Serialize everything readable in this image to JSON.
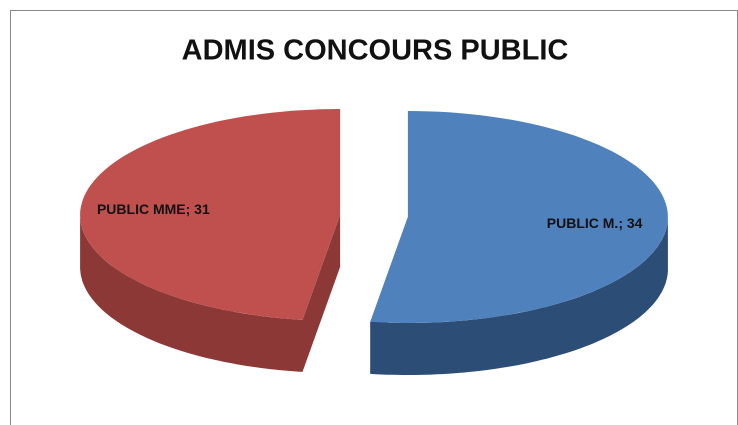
{
  "chart_data": {
    "type": "pie3d",
    "title": "ADMIS CONCOURS PUBLIC",
    "categories": [
      "PUBLIC M.",
      "PUBLIC MME"
    ],
    "values": [
      34,
      31
    ],
    "value_labels": [
      "PUBLIC M.; 34",
      "PUBLIC MME; 31"
    ],
    "colors": [
      "#4f81bd",
      "#c0504d"
    ],
    "side_colors": [
      "#2c4d75",
      "#8c3836"
    ]
  }
}
